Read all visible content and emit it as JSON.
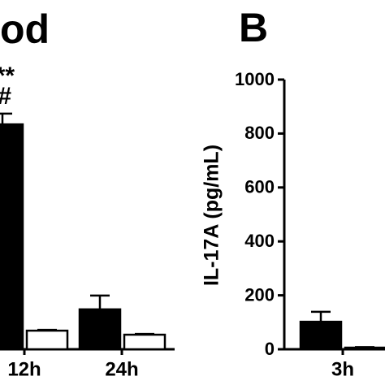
{
  "chart_data": [
    {
      "type": "bar",
      "title": "od",
      "annotations": [
        "**",
        "#"
      ],
      "categories": [
        "12h",
        "24h"
      ],
      "series": [
        {
          "color": "#000000",
          "values": [
            834,
            148
          ],
          "errors": [
            40,
            51
          ]
        },
        {
          "color": "#ffffff",
          "values": [
            69,
            54
          ],
          "errors": [
            3,
            3
          ]
        }
      ],
      "ylim": [
        0,
        1000
      ]
    },
    {
      "type": "bar",
      "title": "B",
      "y_label": "IL-17A (pg/mL)",
      "categories": [
        "3h"
      ],
      "series": [
        {
          "color": "#000000",
          "values": [
            102
          ],
          "errors": [
            37
          ]
        },
        {
          "color": "#ffffff",
          "values": [
            6
          ],
          "errors": [
            2
          ]
        }
      ],
      "ylim": [
        0,
        1000
      ],
      "yticks": [
        0,
        200,
        400,
        600,
        800,
        1000
      ]
    }
  ]
}
